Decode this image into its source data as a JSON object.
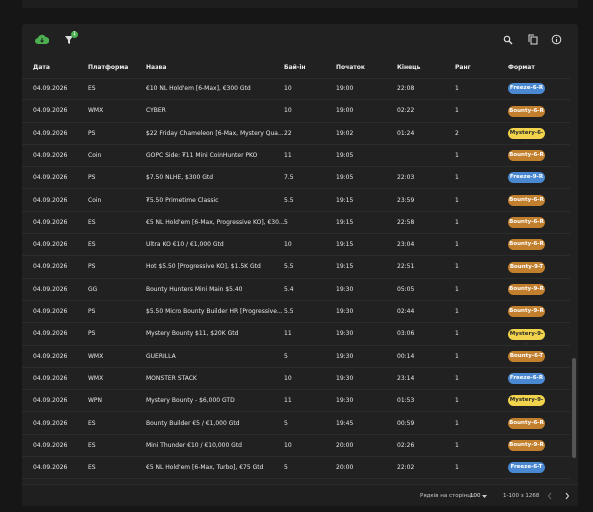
{
  "toolbar": {
    "filter_badge": "1"
  },
  "table": {
    "columns": [
      "Дата",
      "Платформа",
      "Назва",
      "Бай-ін",
      "Початок",
      "Кінець",
      "Ранг",
      "Формат"
    ],
    "rows": [
      [
        "04.09.2026",
        "ES",
        "€10 NL Hold'em [6-Max], €300 Gtd",
        "10",
        "19:00",
        "22:08",
        "1",
        "Freeze-6-R"
      ],
      [
        "04.09.2026",
        "WMX",
        "CYBER",
        "10",
        "19:00",
        "02:22",
        "1",
        "Bounty-6-R"
      ],
      [
        "04.09.2026",
        "PS",
        "$22 Friday Chameleon [6-Max, Mystery Qua...",
        "22",
        "19:02",
        "01:24",
        "2",
        "Mystery-6-R"
      ],
      [
        "04.09.2026",
        "Coin",
        "GOPC Side: ₮11 Mini CoinHunter PKO",
        "11",
        "19:05",
        null,
        "1",
        "Bounty-6-R"
      ],
      [
        "04.09.2026",
        "PS",
        "$7.50 NLHE, $300 Gtd",
        "7.5",
        "19:05",
        "22:03",
        "1",
        "Freeze-9-R"
      ],
      [
        "04.09.2026",
        "Coin",
        "₮5.50 Primetime Classic",
        "5.5",
        "19:15",
        "23:59",
        "1",
        "Bounty-6-R"
      ],
      [
        "04.09.2026",
        "ES",
        "€5 NL Hold'em [6-Max, Progressive KO], €30...",
        "5",
        "19:15",
        "22:58",
        "1",
        "Bounty-6-R"
      ],
      [
        "04.09.2026",
        "ES",
        "Ultra KO €10 / €1,000 Gtd",
        "10",
        "19:15",
        "23:04",
        "1",
        "Bounty-6-R"
      ],
      [
        "04.09.2026",
        "PS",
        "Hot $5.50 [Progressive KO], $1.5K Gtd",
        "5.5",
        "19:15",
        "22:51",
        "1",
        "Bounty-9-T"
      ],
      [
        "04.09.2026",
        "GG",
        "Bounty Hunters Mini Main $5.40",
        "5.4",
        "19:30",
        "05:05",
        "1",
        "Bounty-9-R"
      ],
      [
        "04.09.2026",
        "PS",
        "$5.50 Micro Bounty Builder HR [Progressive...",
        "5.5",
        "19:30",
        "02:44",
        "1",
        "Bounty-9-R"
      ],
      [
        "04.09.2026",
        "PS",
        "Mystery Bounty $11, $20K Gtd",
        "11",
        "19:30",
        "03:06",
        "1",
        "Mystery-9-R"
      ],
      [
        "04.09.2026",
        "WMX",
        "GUERILLA",
        "5",
        "19:30",
        "00:14",
        "1",
        "Bounty-6-T"
      ],
      [
        "04.09.2026",
        "WMX",
        "MONSTER STACK",
        "10",
        "19:30",
        "23:14",
        "1",
        "Freeze-6-R"
      ],
      [
        "04.09.2026",
        "WPN",
        "Mystery Bounty - $6,000 GTD",
        "11",
        "19:30",
        "01:53",
        "1",
        "Mystery-9-R"
      ],
      [
        "04.09.2026",
        "ES",
        "Bounty Builder €5 / €1,000 Gtd",
        "5",
        "19:45",
        "00:59",
        "1",
        "Bounty-6-R"
      ],
      [
        "04.09.2026",
        "ES",
        "Mini Thunder €10 / €10,000 Gtd",
        "10",
        "20:00",
        "02:26",
        "1",
        "Bounty-9-R"
      ],
      [
        "04.09.2026",
        "ES",
        "€5 NL Hold'em [6-Max, Turbo], €75 Gtd",
        "5",
        "20:00",
        "22:02",
        "1",
        "Freeze-6-T"
      ]
    ]
  },
  "footer": {
    "rows_per_page_label": "Рядків на сторінці:",
    "rows_per_page": "100",
    "range": "1-100 з 1268"
  }
}
